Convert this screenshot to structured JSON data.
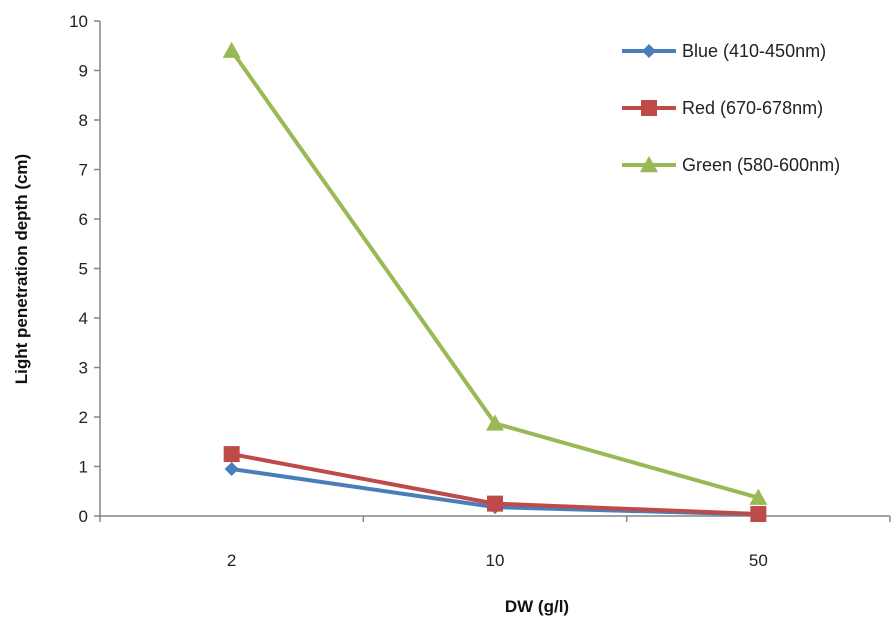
{
  "chart_data": {
    "type": "line",
    "title": "",
    "xlabel": "DW (g/l)",
    "ylabel": "Light penetration depth (cm)",
    "categories": [
      "2",
      "10",
      "50"
    ],
    "ylim": [
      0,
      10
    ],
    "yticks": [
      0,
      1,
      2,
      3,
      4,
      5,
      6,
      7,
      8,
      9,
      10
    ],
    "grid": false,
    "legend_position": "top-right",
    "series": [
      {
        "name": "Blue (410-450nm)",
        "values": [
          0.95,
          0.18,
          0.03
        ],
        "color": "#4a7ebb",
        "marker": "diamond"
      },
      {
        "name": "Red (670-678nm)",
        "values": [
          1.25,
          0.25,
          0.04
        ],
        "color": "#be4b48",
        "marker": "square"
      },
      {
        "name": "Green (580-600nm)",
        "values": [
          9.4,
          1.87,
          0.37
        ],
        "color": "#98b954",
        "marker": "triangle"
      }
    ]
  }
}
